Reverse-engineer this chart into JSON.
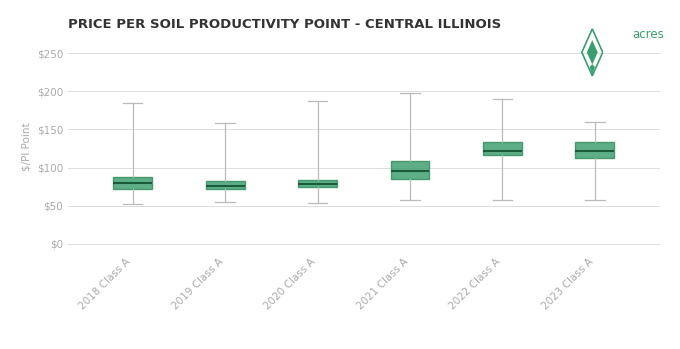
{
  "title": "PRICE PER SOIL PRODUCTIVITY POINT - CENTRAL ILLINOIS",
  "ylabel": "$/PI Point",
  "background_color": "#ffffff",
  "grid_color": "#dddddd",
  "box_color": "#3a9e6e",
  "box_edge_color": "#2e8b57",
  "median_color": "#1a5c3a",
  "whisker_color": "#bbbbbb",
  "cap_color": "#bbbbbb",
  "categories": [
    "2018 Class A",
    "2019 Class A",
    "2020 Class A",
    "2021 Class A",
    "2022 Class A",
    "2023 Class A"
  ],
  "boxes": [
    {
      "whislo": 52,
      "q1": 72,
      "med": 80,
      "q3": 88,
      "whishi": 185
    },
    {
      "whislo": 55,
      "q1": 72,
      "med": 76,
      "q3": 82,
      "whishi": 158
    },
    {
      "whislo": 53,
      "q1": 74,
      "med": 79,
      "q3": 84,
      "whishi": 188
    },
    {
      "whislo": 57,
      "q1": 85,
      "med": 95,
      "q3": 108,
      "whishi": 198
    },
    {
      "whislo": 57,
      "q1": 117,
      "med": 122,
      "q3": 133,
      "whishi": 190
    },
    {
      "whislo": 57,
      "q1": 113,
      "med": 122,
      "q3": 133,
      "whishi": 160
    }
  ],
  "yticks": [
    0,
    50,
    100,
    150,
    200,
    250
  ],
  "ytick_labels": [
    "$0",
    "$50",
    "$100",
    "$150",
    "$200",
    "$250"
  ],
  "ylim": [
    -10,
    265
  ],
  "logo_text": "acres",
  "logo_color": "#3a9e6e",
  "title_color": "#333333",
  "tick_color": "#aaaaaa",
  "label_color": "#aaaaaa"
}
